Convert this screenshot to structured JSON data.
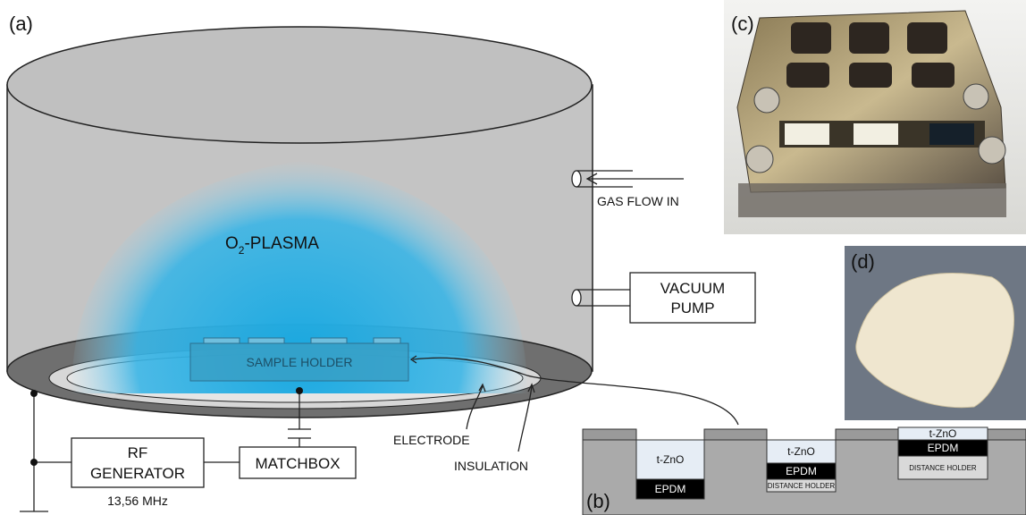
{
  "panels": {
    "a": "(a)",
    "b": "(b)",
    "c": "(c)",
    "d": "(d)"
  },
  "chamber": {
    "plasma_label": [
      "O",
      "2",
      "-PLASMA"
    ],
    "sample_holder": "SAMPLE HOLDER",
    "electrode": "ELECTRODE",
    "insulation": "INSULATION",
    "gas_flow": "GAS FLOW IN",
    "vacuum_pump": [
      "VACUUM",
      "PUMP"
    ]
  },
  "circuit": {
    "rf_generator": [
      "RF",
      "GENERATOR"
    ],
    "frequency": "13,56 MHz",
    "matchbox": "MATCHBOX"
  },
  "cross_section": {
    "wells": [
      {
        "layers": [
          "t-ZnO",
          "EPDM"
        ]
      },
      {
        "layers": [
          "t-ZnO",
          "EPDM",
          "DISTANCE HOLDER"
        ]
      },
      {
        "layers": [
          "t-ZnO",
          "EPDM",
          "DISTANCE HOLDER"
        ]
      }
    ]
  }
}
